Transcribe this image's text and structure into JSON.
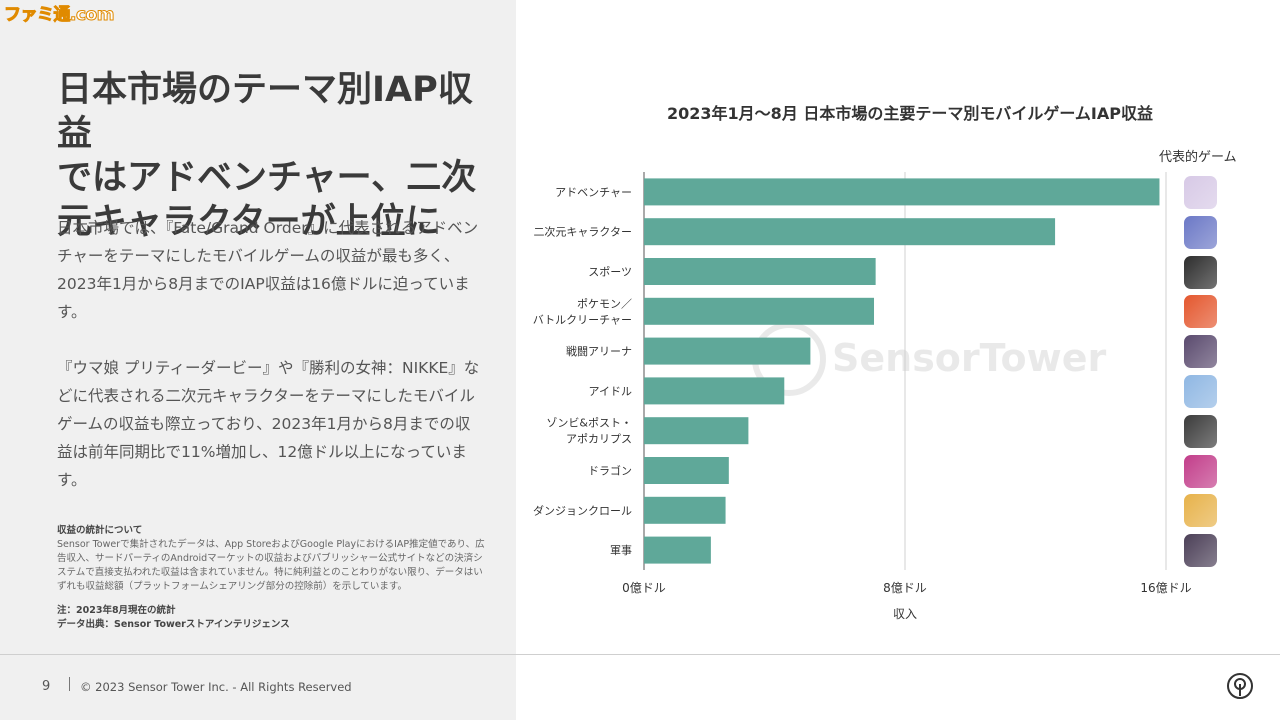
{
  "site_logo": "ファミ通.com",
  "headline": [
    "日本市場のテーマ別IAP収益",
    "ではアドベンチャー、二次",
    "元キャラクターが上位に"
  ],
  "body_paragraphs": [
    "日本市場では、『Fate/Grand Order』に代表されるアドベンチャーをテーマにしたモバイルゲームの収益が最も多く、2023年1月から8月までのIAP収益は16億ドルに迫っています。",
    "『ウマ娘 プリティーダービー』や『勝利の女神：NIKKE』などに代表される二次元キャラクターをテーマにしたモバイルゲームの収益も際立っており、2023年1月から8月までの収益は前年同期比で11%増加し、12億ドル以上になっています。"
  ],
  "notes": {
    "title": "収益の統計について",
    "body": "Sensor Towerで集計されたデータは、App StoreおよびGoogle PlayにおけるIAP推定値であり、広告収入、サードパーティのAndroidマーケットの収益およびパブリッシャー公式サイトなどの決済システムで直接支払われた収益は含まれていません。特に純利益とのことわりがない限り、データはいずれも収益総額（プラットフォームシェアリング部分の控除前）を示しています。",
    "note": "注：2023年8月現在の統計",
    "source": "データ出典：Sensor Towerストアインテリジェンス"
  },
  "footer": {
    "page": "9",
    "copyright": "© 2023 Sensor Tower Inc. - All Rights Reserved",
    "icon": "sensor-tower-icon"
  },
  "chart_data": {
    "type": "bar",
    "orientation": "horizontal",
    "title": "2023年1月〜8月 日本市場の主要テーマ別モバイルゲームIAP収益",
    "categories": [
      "アドベンチャー",
      "二次元キャラクター",
      "スポーツ",
      "ポケモン／\nバトルクリーチャー",
      "戦闘アリーナ",
      "アイドル",
      "ゾンビ&ポスト・\nアポカリプス",
      "ドラゴン",
      "ダンジョンクロール",
      "軍事"
    ],
    "values": [
      15.8,
      12.6,
      7.1,
      7.05,
      5.1,
      4.3,
      3.2,
      2.6,
      2.5,
      2.05
    ],
    "unit": "億ドル",
    "xlabel": "収入",
    "xlim": [
      0,
      16
    ],
    "xticks": [
      "0億ドル",
      "8億ドル",
      "16億ドル"
    ],
    "xtick_values": [
      0,
      8,
      16
    ],
    "grid": "vertical",
    "bar_color": "#5fa899",
    "watermark": "SensorTower",
    "side_column_title": "代表的ゲーム",
    "game_icon_colors": [
      "#d7c9e6",
      "#6b78c6",
      "#2d2d2d",
      "#e4572e",
      "#5a4a6e",
      "#8fb7e3",
      "#3b3b3b",
      "#c23d8a",
      "#e7b24a",
      "#4b3f57"
    ]
  }
}
